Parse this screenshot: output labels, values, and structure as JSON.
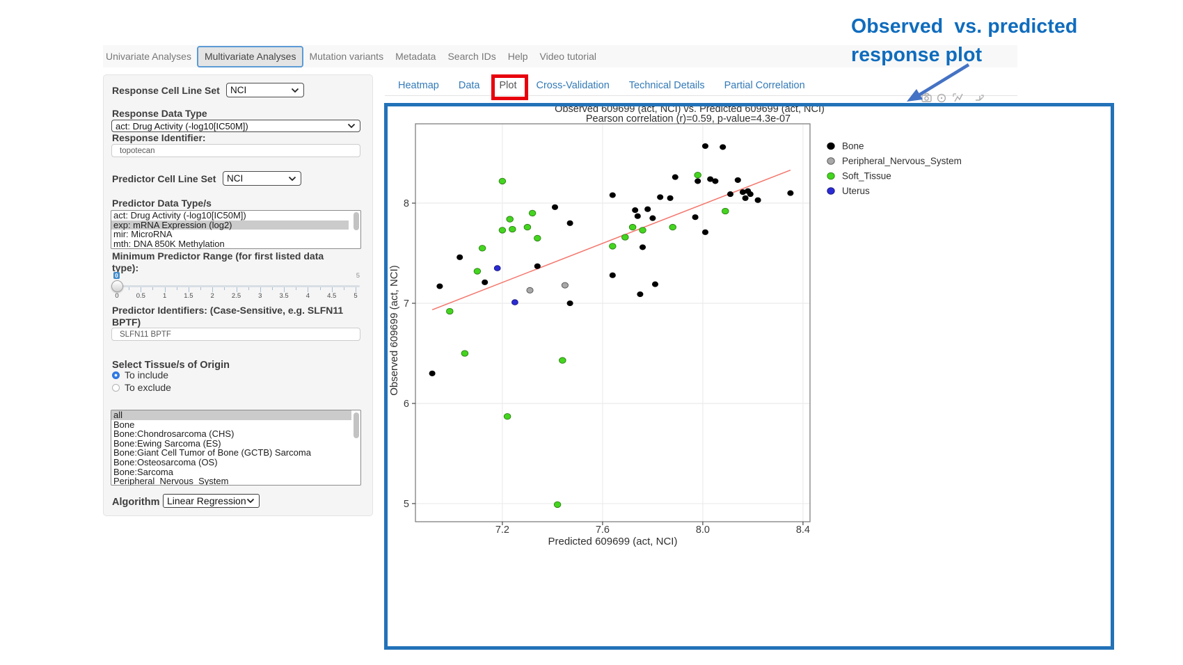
{
  "annotation": {
    "line1": "Observed  vs. predicted",
    "line2": "response plot"
  },
  "navbar": {
    "items": [
      {
        "label": "Univariate Analyses",
        "active": false
      },
      {
        "label": "Multivariate Analyses",
        "active": true
      },
      {
        "label": "Mutation variants",
        "active": false
      },
      {
        "label": "Metadata",
        "active": false
      },
      {
        "label": "Search IDs",
        "active": false
      },
      {
        "label": "Help",
        "active": false
      },
      {
        "label": "Video tutorial",
        "active": false
      }
    ]
  },
  "sidebar": {
    "response_cell_line_set": {
      "label": "Response Cell Line Set",
      "value": "NCI"
    },
    "response_data_type": {
      "label": "Response Data Type",
      "value": "act: Drug Activity (-log10[IC50M])"
    },
    "response_identifier": {
      "label": "Response Identifier:",
      "value": "topotecan"
    },
    "predictor_cell_line_set": {
      "label": "Predictor Cell Line Set",
      "value": "NCI"
    },
    "predictor_data_types": {
      "label": "Predictor Data Type/s",
      "options": [
        "act: Drug Activity (-log10[IC50M])",
        "exp: mRNA Expression (log2)",
        "mir: MicroRNA",
        "mth: DNA 850K Methylation"
      ],
      "selected": "exp: mRNA Expression (log2)"
    },
    "min_predictor_range": {
      "label_line1": "Minimum Predictor Range (for first listed data",
      "label_line2": "type):",
      "value": "0",
      "max_label": "5",
      "tick_labels": [
        "0",
        "0.5",
        "1",
        "1.5",
        "2",
        "2.5",
        "3",
        "3.5",
        "4",
        "4.5",
        "5"
      ]
    },
    "predictor_identifiers": {
      "label_line1": "Predictor Identifiers: (Case-Sensitive, e.g. SLFN11",
      "label_line2": "BPTF)",
      "value": "SLFN11 BPTF"
    },
    "tissue_origin": {
      "label": "Select Tissue/s of Origin",
      "radio_include": "To include",
      "radio_exclude": "To exclude",
      "include_selected": true,
      "options": [
        "all",
        "Bone",
        "Bone:Chondrosarcoma (CHS)",
        "Bone:Ewing Sarcoma (ES)",
        "Bone:Giant Cell Tumor of Bone (GCTB) Sarcoma",
        "Bone:Osteosarcoma (OS)",
        "Bone:Sarcoma",
        "Peripheral_Nervous_System"
      ],
      "selected": "all"
    },
    "algorithm": {
      "label": "Algorithm",
      "value": "Linear Regression"
    }
  },
  "subtabs": {
    "items": [
      "Heatmap",
      "Data",
      "Plot",
      "Cross-Validation",
      "Technical Details",
      "Partial Correlation"
    ],
    "active": "Plot"
  },
  "modebar": {
    "icons": [
      "camera-icon",
      "zoom-icon",
      "pan-icon",
      "autoscale-icon"
    ]
  },
  "chart_data": {
    "type": "scatter",
    "title": "Observed 609699 (act, NCI) vs. Predicted 609699 (act, NCI)",
    "subtitle": "Pearson correlation (r)=0.59, p-value=4.3e-07",
    "xlabel": "Predicted 609699 (act, NCI)",
    "ylabel": "Observed 609699 (act, NCI)",
    "xlim": [
      6.853,
      8.428
    ],
    "ylim": [
      4.819,
      8.792
    ],
    "xticks": [
      7.2,
      7.6,
      8.0,
      8.4
    ],
    "yticks": [
      5,
      6,
      7,
      8
    ],
    "grid": true,
    "legend_position": "right",
    "trend_line": {
      "x1": 6.92,
      "y1": 6.935,
      "x2": 8.35,
      "y2": 8.33,
      "color": "#f4756b"
    },
    "series": [
      {
        "name": "Bone",
        "color": "#000000",
        "stroke": "#000000",
        "size": 4.1,
        "points": [
          [
            8.01,
            8.57
          ],
          [
            8.08,
            8.56
          ],
          [
            7.89,
            8.26
          ],
          [
            7.98,
            8.22
          ],
          [
            8.03,
            8.24
          ],
          [
            8.05,
            8.22
          ],
          [
            8.14,
            8.23
          ],
          [
            8.35,
            8.1
          ],
          [
            8.11,
            8.09
          ],
          [
            8.16,
            8.11
          ],
          [
            8.18,
            8.12
          ],
          [
            8.19,
            8.09
          ],
          [
            8.17,
            8.05
          ],
          [
            8.22,
            8.03
          ],
          [
            7.64,
            8.08
          ],
          [
            7.83,
            8.06
          ],
          [
            7.87,
            8.05
          ],
          [
            7.41,
            7.96
          ],
          [
            7.73,
            7.93
          ],
          [
            7.78,
            7.94
          ],
          [
            7.74,
            7.87
          ],
          [
            7.8,
            7.85
          ],
          [
            7.97,
            7.86
          ],
          [
            7.47,
            7.8
          ],
          [
            8.01,
            7.71
          ],
          [
            7.76,
            7.56
          ],
          [
            7.03,
            7.46
          ],
          [
            7.34,
            7.37
          ],
          [
            7.64,
            7.28
          ],
          [
            7.81,
            7.19
          ],
          [
            7.13,
            7.21
          ],
          [
            6.95,
            7.17
          ],
          [
            7.75,
            7.09
          ],
          [
            7.47,
            7.0
          ],
          [
            6.92,
            6.3
          ]
        ]
      },
      {
        "name": "Peripheral_Nervous_System",
        "color": "#a8a8a8",
        "stroke": "#4f4f4f",
        "size": 4.6,
        "points": [
          [
            7.31,
            7.13
          ],
          [
            7.45,
            7.18
          ]
        ]
      },
      {
        "name": "Soft_Tissue",
        "color": "#44d51f",
        "stroke": "#2a7e12",
        "size": 4.8,
        "points": [
          [
            7.2,
            8.22
          ],
          [
            7.98,
            8.28
          ],
          [
            7.32,
            7.9
          ],
          [
            8.09,
            7.92
          ],
          [
            7.23,
            7.84
          ],
          [
            7.2,
            7.73
          ],
          [
            7.24,
            7.74
          ],
          [
            7.3,
            7.76
          ],
          [
            7.88,
            7.76
          ],
          [
            7.72,
            7.76
          ],
          [
            7.76,
            7.73
          ],
          [
            7.34,
            7.65
          ],
          [
            7.69,
            7.66
          ],
          [
            7.64,
            7.57
          ],
          [
            7.12,
            7.55
          ],
          [
            7.1,
            7.32
          ],
          [
            6.99,
            6.92
          ],
          [
            7.05,
            6.5
          ],
          [
            7.44,
            6.43
          ],
          [
            7.22,
            5.87
          ],
          [
            7.42,
            4.99
          ]
        ]
      },
      {
        "name": "Uterus",
        "color": "#2b2bd5",
        "stroke": "#15157a",
        "size": 4.4,
        "points": [
          [
            7.18,
            7.35
          ],
          [
            7.25,
            7.01
          ]
        ]
      }
    ]
  }
}
